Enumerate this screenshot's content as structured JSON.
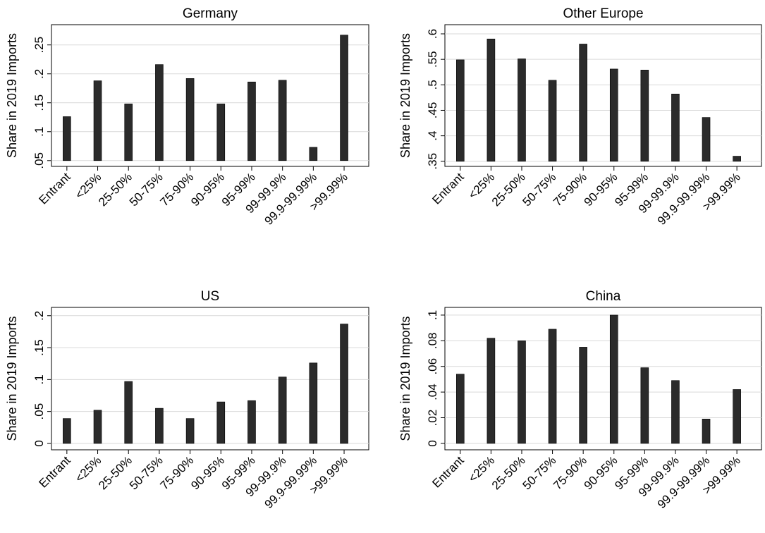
{
  "chart_data": [
    {
      "type": "bar",
      "title": "Germany",
      "xlabel": "",
      "ylabel": "Share in 2019 Imports",
      "categories": [
        "Entrant",
        "<25%",
        "25-50%",
        "50-75%",
        "75-90%",
        "90-95%",
        "95-99%",
        "99-99.9%",
        "99.9-99.99%",
        ">99.99%"
      ],
      "values": [
        0.126,
        0.188,
        0.148,
        0.216,
        0.192,
        0.148,
        0.186,
        0.189,
        0.073,
        0.267
      ],
      "base": 0.05,
      "ylim": [
        0.04,
        0.285
      ],
      "yticks": [
        0.05,
        0.1,
        0.15,
        0.2,
        0.25
      ],
      "ytick_labels": [
        ".05",
        ".1",
        ".15",
        ".2",
        ".25"
      ],
      "grid": true,
      "bar_color": "#2b2b2b"
    },
    {
      "type": "bar",
      "title": "Other Europe",
      "xlabel": "",
      "ylabel": "Share in 2019 Imports",
      "categories": [
        "Entrant",
        "<25%",
        "25-50%",
        "50-75%",
        "75-90%",
        "90-95%",
        "95-99%",
        "99-99.9%",
        "99.9-99.99%",
        ">99.99%"
      ],
      "values": [
        0.549,
        0.59,
        0.551,
        0.509,
        0.58,
        0.531,
        0.529,
        0.482,
        0.436,
        0.36
      ],
      "base": 0.35,
      "ylim": [
        0.34,
        0.618
      ],
      "yticks": [
        0.35,
        0.4,
        0.45,
        0.5,
        0.55,
        0.6
      ],
      "ytick_labels": [
        ".35",
        ".4",
        ".45",
        ".5",
        ".55",
        ".6"
      ],
      "grid": true,
      "bar_color": "#2b2b2b"
    },
    {
      "type": "bar",
      "title": "US",
      "xlabel": "",
      "ylabel": "Share in 2019 Imports",
      "categories": [
        "Entrant",
        "<25%",
        "25-50%",
        "50-75%",
        "75-90%",
        "90-95%",
        "95-99%",
        "99-99.9%",
        "99.9-99.99%",
        ">99.99%"
      ],
      "values": [
        0.039,
        0.052,
        0.097,
        0.055,
        0.039,
        0.065,
        0.067,
        0.104,
        0.126,
        0.187
      ],
      "base": 0,
      "ylim": [
        -0.01,
        0.213
      ],
      "yticks": [
        0,
        0.05,
        0.1,
        0.15,
        0.2
      ],
      "ytick_labels": [
        "0",
        ".05",
        ".1",
        ".15",
        ".2"
      ],
      "grid": true,
      "bar_color": "#2b2b2b"
    },
    {
      "type": "bar",
      "title": "China",
      "xlabel": "",
      "ylabel": "Share in 2019 Imports",
      "categories": [
        "Entrant",
        "<25%",
        "25-50%",
        "50-75%",
        "75-90%",
        "90-95%",
        "95-99%",
        "99-99.9%",
        "99.9-99.99%",
        ">99.99%"
      ],
      "values": [
        0.054,
        0.082,
        0.08,
        0.089,
        0.075,
        0.1,
        0.059,
        0.049,
        0.019,
        0.042
      ],
      "base": 0,
      "ylim": [
        -0.005,
        0.106
      ],
      "yticks": [
        0,
        0.02,
        0.04,
        0.06,
        0.08,
        0.1
      ],
      "ytick_labels": [
        "0",
        ".02",
        ".04",
        ".06",
        ".08",
        ".1"
      ],
      "grid": true,
      "bar_color": "#2b2b2b"
    }
  ]
}
